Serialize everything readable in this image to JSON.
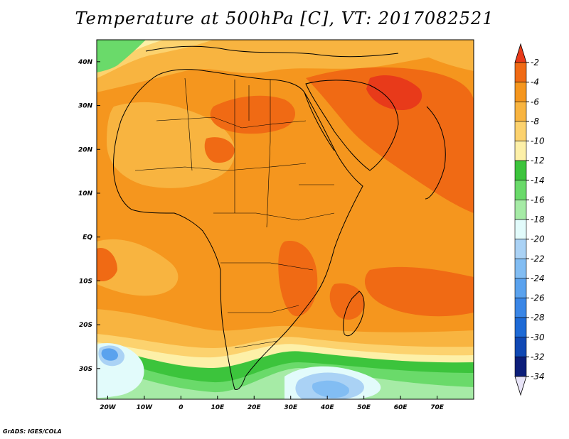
{
  "title": "Temperature at 500hPa [C], VT: 2017082521",
  "credit": "GrADS: IGES/COLA",
  "map": {
    "lon_range": [
      -23,
      80
    ],
    "lat_range": [
      -37,
      45
    ],
    "lon_ticks": [
      {
        "value": -20,
        "label": "20W"
      },
      {
        "value": -10,
        "label": "10W"
      },
      {
        "value": 0,
        "label": "0"
      },
      {
        "value": 10,
        "label": "10E"
      },
      {
        "value": 20,
        "label": "20E"
      },
      {
        "value": 30,
        "label": "30E"
      },
      {
        "value": 40,
        "label": "40E"
      },
      {
        "value": 50,
        "label": "50E"
      },
      {
        "value": 60,
        "label": "60E"
      },
      {
        "value": 70,
        "label": "70E"
      }
    ],
    "lat_ticks": [
      {
        "value": 40,
        "label": "40N"
      },
      {
        "value": 30,
        "label": "30N"
      },
      {
        "value": 20,
        "label": "20N"
      },
      {
        "value": 10,
        "label": "10N"
      },
      {
        "value": 0,
        "label": "EQ"
      },
      {
        "value": -10,
        "label": "10S"
      },
      {
        "value": -20,
        "label": "20S"
      },
      {
        "value": -30,
        "label": "30S"
      }
    ]
  },
  "colorbar": {
    "labels": [
      "-2",
      "-4",
      "-6",
      "-8",
      "-10",
      "-12",
      "-14",
      "-16",
      "-18",
      "-20",
      "-22",
      "-24",
      "-26",
      "-28",
      "-30",
      "-32",
      "-34"
    ],
    "colors": [
      "#e83a1a",
      "#f06a14",
      "#f5961e",
      "#f8b440",
      "#fcd26e",
      "#fdf0a8",
      "#3cc43c",
      "#6ada6a",
      "#a6eba6",
      "#e2fbfb",
      "#aad2f5",
      "#82bdf3",
      "#5aa2ee",
      "#3a86e6",
      "#1e6ad6",
      "#1048b4",
      "#0c1e7a"
    ]
  }
}
